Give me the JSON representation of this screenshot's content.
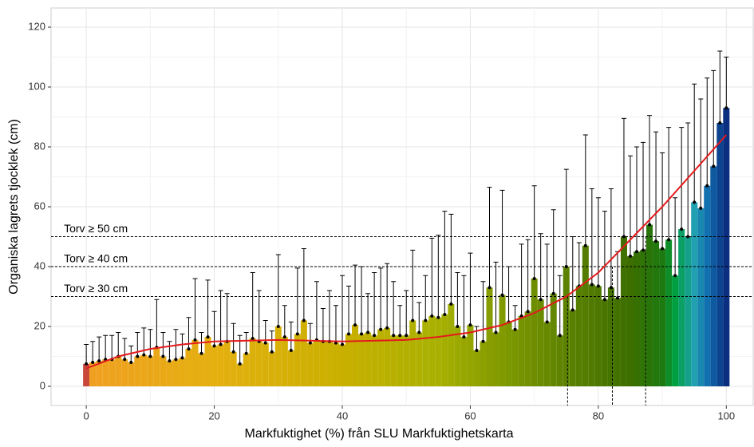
{
  "chart_data": {
    "type": "bar",
    "x": [
      0,
      1,
      2,
      3,
      4,
      5,
      6,
      7,
      8,
      9,
      10,
      11,
      12,
      13,
      14,
      15,
      16,
      17,
      18,
      19,
      20,
      21,
      22,
      23,
      24,
      25,
      26,
      27,
      28,
      29,
      30,
      31,
      32,
      33,
      34,
      35,
      36,
      37,
      38,
      39,
      40,
      41,
      42,
      43,
      44,
      45,
      46,
      47,
      48,
      49,
      50,
      51,
      52,
      53,
      54,
      55,
      56,
      57,
      58,
      59,
      60,
      61,
      62,
      63,
      64,
      65,
      66,
      67,
      68,
      69,
      70,
      71,
      72,
      73,
      74,
      75,
      76,
      77,
      78,
      79,
      80,
      81,
      82,
      83,
      84,
      85,
      86,
      87,
      88,
      89,
      90,
      91,
      92,
      93,
      94,
      95,
      96,
      97,
      98,
      99,
      100
    ],
    "values": [
      7.5,
      8,
      8.5,
      9,
      9,
      10,
      9,
      8,
      10,
      10.5,
      10,
      13,
      10,
      8.5,
      9,
      9.5,
      12.5,
      15.5,
      11,
      16.5,
      13.5,
      14,
      15,
      11.5,
      7.5,
      11,
      16,
      15,
      14.5,
      11.5,
      20,
      16.5,
      12,
      17.5,
      22,
      14.5,
      15.5,
      15,
      15,
      14.5,
      14,
      17.5,
      20.5,
      17.5,
      18,
      17,
      19,
      19.5,
      17,
      17,
      17,
      22,
      18,
      22,
      23.5,
      23,
      24,
      27.5,
      20,
      16.5,
      20.5,
      12,
      15,
      33,
      18,
      30.5,
      21.5,
      19,
      23.5,
      25,
      36,
      29,
      21.5,
      31,
      17,
      40,
      25.5,
      33.5,
      47,
      34,
      33.5,
      29,
      33,
      29.5,
      50,
      43.5,
      45,
      45.5,
      54,
      48.5,
      46,
      49,
      37,
      52.5,
      50,
      61.5,
      59.5,
      67,
      73.5,
      88,
      93
    ],
    "errors": [
      6.5,
      7,
      8,
      8,
      8,
      8,
      7,
      5.5,
      8,
      9,
      9,
      16,
      8,
      6.5,
      10,
      8,
      10.5,
      20.5,
      7,
      19,
      11.5,
      18,
      16,
      9.5,
      9.5,
      7,
      22,
      17,
      7.5,
      7,
      24,
      10.5,
      9.5,
      22,
      24,
      6.5,
      19.5,
      11,
      17,
      12.5,
      23,
      16,
      20,
      22.5,
      13,
      21,
      20.5,
      21.5,
      18,
      10,
      15,
      23.5,
      10,
      15,
      26,
      27.5,
      34.5,
      30,
      18,
      20.5,
      24,
      8,
      20,
      33.5,
      23.5,
      35,
      18.5,
      8,
      24,
      24,
      31,
      22,
      26,
      28,
      20,
      32.5,
      24.5,
      14.5,
      37,
      32,
      29.5,
      29.5,
      33,
      15.5,
      39.5,
      33.5,
      35,
      36,
      36.5,
      36.5,
      32,
      37.5,
      26,
      34,
      38,
      39.5,
      36.5,
      36,
      32,
      24,
      17
    ],
    "color_scale": {
      "stops": [
        0,
        1,
        20,
        40,
        55,
        65,
        75,
        85,
        90,
        92,
        95,
        97,
        100
      ],
      "colors": [
        "#c8483a",
        "#f0a020",
        "#e4b010",
        "#c9b000",
        "#a8b000",
        "#809a00",
        "#5c8200",
        "#3d6e00",
        "#1c7a10",
        "#00a040",
        "#20a0b0",
        "#1070b0",
        "#0a2e80"
      ]
    },
    "fit": {
      "x": [
        0,
        5,
        10,
        15,
        20,
        30,
        40,
        50,
        55,
        60,
        65,
        70,
        75,
        80,
        85,
        90,
        95,
        100
      ],
      "y": [
        6,
        10,
        12.5,
        14,
        15,
        15.5,
        15,
        15.5,
        16.5,
        18,
        20.5,
        24.5,
        30,
        38,
        49,
        60,
        72,
        84
      ],
      "color": "#e41a1c"
    },
    "hlines": [
      {
        "value": 30,
        "label": "Torv ≥ 30 cm"
      },
      {
        "value": 40,
        "label": "Torv ≥ 40 cm"
      },
      {
        "value": 50,
        "label": "Torv ≥ 50 cm"
      }
    ],
    "vlines": [
      {
        "x": 75.2,
        "y": 30
      },
      {
        "x": 82.2,
        "y": 40
      },
      {
        "x": 87.4,
        "y": 50
      }
    ],
    "xlabel": "Markfuktighet (%) från SLU Markfuktighetskarta",
    "ylabel": "Organiska lagrets tjocklek (cm)",
    "xlim": [
      -5.5,
      104.2
    ],
    "ylim": [
      -6.4,
      126.4
    ],
    "xticks": [
      0,
      20,
      40,
      60,
      80,
      100
    ],
    "yticks": [
      0,
      20,
      40,
      60,
      80,
      100,
      120
    ],
    "grid": true
  }
}
